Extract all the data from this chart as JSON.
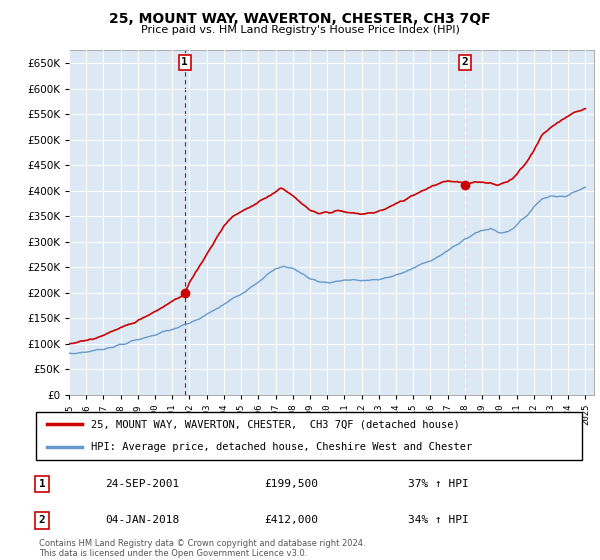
{
  "title": "25, MOUNT WAY, WAVERTON, CHESTER, CH3 7QF",
  "subtitle": "Price paid vs. HM Land Registry's House Price Index (HPI)",
  "legend_line1": "25, MOUNT WAY, WAVERTON, CHESTER,  CH3 7QF (detached house)",
  "legend_line2": "HPI: Average price, detached house, Cheshire West and Chester",
  "footnote1": "Contains HM Land Registry data © Crown copyright and database right 2024.",
  "footnote2": "This data is licensed under the Open Government Licence v3.0.",
  "transaction1_label": "1",
  "transaction1_date": "24-SEP-2001",
  "transaction1_price": "£199,500",
  "transaction1_hpi": "37% ↑ HPI",
  "transaction2_label": "2",
  "transaction2_date": "04-JAN-2018",
  "transaction2_price": "£412,000",
  "transaction2_hpi": "34% ↑ HPI",
  "hpi_color": "#6699cc",
  "price_color": "#cc0000",
  "bg_fill_color": "#dce9f5",
  "marker1_x": 2001.73,
  "marker1_y": 199500,
  "marker2_x": 2018.01,
  "marker2_y": 412000,
  "ylim": [
    0,
    675000
  ],
  "xlim_start": 1995.0,
  "xlim_end": 2025.5,
  "yticks": [
    0,
    50000,
    100000,
    150000,
    200000,
    250000,
    300000,
    350000,
    400000,
    450000,
    500000,
    550000,
    600000,
    650000
  ],
  "xticks": [
    1995,
    1996,
    1997,
    1998,
    1999,
    2000,
    2001,
    2002,
    2003,
    2004,
    2005,
    2006,
    2007,
    2008,
    2009,
    2010,
    2011,
    2012,
    2013,
    2014,
    2015,
    2016,
    2017,
    2018,
    2019,
    2020,
    2021,
    2022,
    2023,
    2024,
    2025
  ],
  "hpi_anchors_x": [
    1995.0,
    1995.5,
    1996.0,
    1996.5,
    1997.0,
    1997.5,
    1998.0,
    1998.5,
    1999.0,
    1999.5,
    2000.0,
    2000.5,
    2001.0,
    2001.5,
    2002.0,
    2002.5,
    2003.0,
    2003.5,
    2004.0,
    2004.5,
    2005.0,
    2005.5,
    2006.0,
    2006.5,
    2007.0,
    2007.5,
    2008.0,
    2008.5,
    2009.0,
    2009.5,
    2010.0,
    2010.5,
    2011.0,
    2011.5,
    2012.0,
    2012.5,
    2013.0,
    2013.5,
    2014.0,
    2014.5,
    2015.0,
    2015.5,
    2016.0,
    2016.5,
    2017.0,
    2017.5,
    2018.0,
    2018.5,
    2019.0,
    2019.5,
    2020.0,
    2020.5,
    2021.0,
    2021.5,
    2022.0,
    2022.5,
    2023.0,
    2023.5,
    2024.0,
    2024.5,
    2025.0
  ],
  "hpi_anchors_y": [
    80000,
    82000,
    84000,
    87000,
    90000,
    94000,
    98000,
    103000,
    108000,
    113000,
    118000,
    123000,
    128000,
    134000,
    140000,
    148000,
    157000,
    167000,
    177000,
    188000,
    198000,
    210000,
    222000,
    235000,
    246000,
    252000,
    248000,
    238000,
    228000,
    222000,
    220000,
    222000,
    225000,
    225000,
    224000,
    224000,
    226000,
    230000,
    235000,
    240000,
    248000,
    256000,
    264000,
    272000,
    282000,
    293000,
    305000,
    315000,
    322000,
    326000,
    318000,
    320000,
    332000,
    348000,
    368000,
    385000,
    390000,
    388000,
    392000,
    400000,
    405000
  ],
  "red_anchors_x": [
    1995.0,
    1995.5,
    1996.0,
    1996.5,
    1997.0,
    1997.5,
    1998.0,
    1998.5,
    1999.0,
    1999.5,
    2000.0,
    2000.5,
    2001.0,
    2001.5,
    2001.73,
    2002.0,
    2002.5,
    2003.0,
    2003.5,
    2004.0,
    2004.5,
    2005.0,
    2005.5,
    2006.0,
    2006.5,
    2007.0,
    2007.3,
    2007.5,
    2008.0,
    2008.5,
    2009.0,
    2009.5,
    2010.0,
    2010.5,
    2011.0,
    2011.5,
    2012.0,
    2012.5,
    2013.0,
    2013.5,
    2014.0,
    2014.5,
    2015.0,
    2015.5,
    2016.0,
    2016.5,
    2017.0,
    2017.5,
    2018.0,
    2018.01,
    2018.5,
    2019.0,
    2019.5,
    2020.0,
    2020.5,
    2021.0,
    2021.5,
    2022.0,
    2022.5,
    2023.0,
    2023.5,
    2024.0,
    2024.5,
    2025.0
  ],
  "red_anchors_y": [
    100000,
    103000,
    107000,
    112000,
    118000,
    124000,
    131000,
    138000,
    146000,
    155000,
    163000,
    173000,
    183000,
    193000,
    199500,
    220000,
    248000,
    275000,
    305000,
    332000,
    348000,
    360000,
    368000,
    378000,
    388000,
    398000,
    405000,
    400000,
    390000,
    375000,
    360000,
    355000,
    358000,
    360000,
    358000,
    356000,
    354000,
    356000,
    360000,
    366000,
    374000,
    382000,
    392000,
    400000,
    408000,
    415000,
    420000,
    418000,
    414000,
    412000,
    415000,
    418000,
    415000,
    412000,
    418000,
    432000,
    452000,
    478000,
    510000,
    525000,
    535000,
    548000,
    555000,
    560000
  ]
}
